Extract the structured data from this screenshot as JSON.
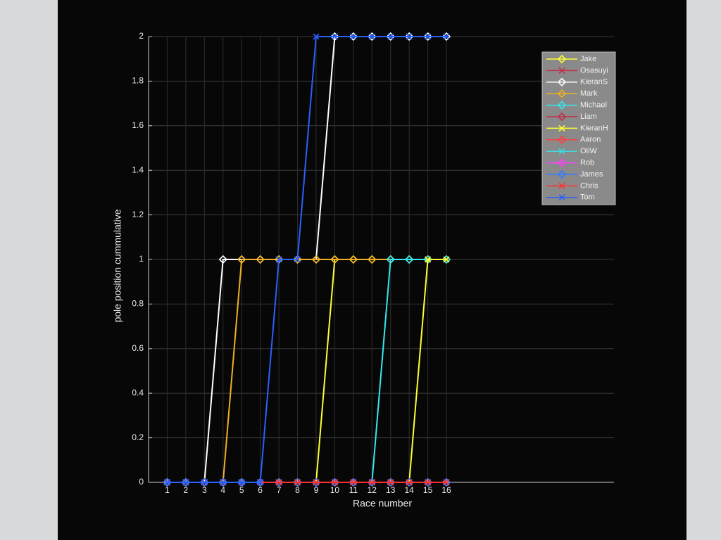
{
  "chart_data": {
    "type": "line",
    "xlabel": "Race number",
    "ylabel": "pole position cummulative",
    "x": [
      1,
      2,
      3,
      4,
      5,
      6,
      7,
      8,
      9,
      10,
      11,
      12,
      13,
      14,
      15,
      16
    ],
    "xlim": [
      0,
      25
    ],
    "xticks": [
      1,
      2,
      3,
      4,
      5,
      6,
      7,
      8,
      9,
      10,
      11,
      12,
      13,
      14,
      15,
      16
    ],
    "ylim": [
      0,
      2
    ],
    "yticks": [
      0,
      0.2,
      0.4,
      0.6,
      0.8,
      1,
      1.2,
      1.4,
      1.6,
      1.8,
      2
    ],
    "grid": true,
    "legend": "upper right",
    "series": [
      {
        "name": "Jake",
        "color": "#ffff33",
        "marker": "diamond",
        "values": [
          0,
          0,
          0,
          0,
          0,
          0,
          0,
          0,
          0,
          1,
          1,
          1,
          1,
          1,
          1,
          1
        ]
      },
      {
        "name": "Osasuyi",
        "color": "#c0304a",
        "marker": "x",
        "values": [
          0,
          0,
          0,
          0,
          0,
          0,
          0,
          0,
          0,
          0,
          0,
          0,
          0,
          0,
          0,
          0
        ]
      },
      {
        "name": "KieranS",
        "color": "#ffffff",
        "marker": "diamond",
        "values": [
          0,
          0,
          0,
          1,
          1,
          1,
          1,
          1,
          1,
          2,
          2,
          2,
          2,
          2,
          2,
          2
        ]
      },
      {
        "name": "Mark",
        "color": "#f0b020",
        "marker": "diamond",
        "values": [
          0,
          0,
          0,
          0,
          1,
          1,
          1,
          1,
          1,
          1,
          1,
          1,
          1,
          1,
          1,
          1
        ]
      },
      {
        "name": "Michael",
        "color": "#33e8f0",
        "marker": "diamond",
        "values": [
          0,
          0,
          0,
          0,
          0,
          0,
          0,
          0,
          0,
          0,
          0,
          0,
          1,
          1,
          1,
          1
        ]
      },
      {
        "name": "Liam",
        "color": "#c0304a",
        "marker": "diamond",
        "values": [
          0,
          0,
          0,
          0,
          0,
          0,
          0,
          0,
          0,
          0,
          0,
          0,
          0,
          0,
          0,
          0
        ]
      },
      {
        "name": "KieranH",
        "color": "#ffff33",
        "marker": "x",
        "values": [
          0,
          0,
          0,
          0,
          0,
          0,
          0,
          0,
          0,
          0,
          0,
          0,
          0,
          0,
          1,
          1
        ]
      },
      {
        "name": "Aaron",
        "color": "#ff4040",
        "marker": "diamond",
        "values": [
          0,
          0,
          0,
          0,
          0,
          0,
          0,
          0,
          0,
          0,
          0,
          0,
          0,
          0,
          0,
          0
        ]
      },
      {
        "name": "OliW",
        "color": "#40d8e0",
        "marker": "x",
        "values": [
          0,
          0,
          0,
          0,
          0,
          0,
          0,
          0,
          0,
          0,
          0,
          0,
          0,
          0,
          0,
          0
        ]
      },
      {
        "name": "Rob",
        "color": "#ff40ff",
        "marker": "diamond",
        "values": [
          0,
          0,
          0,
          0,
          0,
          0,
          0,
          0,
          0,
          0,
          0,
          0,
          0,
          0,
          0,
          0
        ]
      },
      {
        "name": "James",
        "color": "#3a7bff",
        "marker": "diamond",
        "values": [
          0,
          0,
          0,
          0,
          0,
          0,
          0,
          0,
          0,
          0,
          0,
          0,
          0,
          0,
          0,
          0
        ]
      },
      {
        "name": "Chris",
        "color": "#ff3030",
        "marker": "x",
        "values": [
          0,
          0,
          0,
          0,
          0,
          0,
          0,
          0,
          0,
          0,
          0,
          0,
          0,
          0,
          0,
          0
        ]
      },
      {
        "name": "Tom",
        "color": "#2a60ff",
        "marker": "x",
        "values": [
          0,
          0,
          0,
          0,
          0,
          0,
          1,
          1,
          2,
          2,
          2,
          2,
          2,
          2,
          2,
          2
        ]
      }
    ]
  }
}
